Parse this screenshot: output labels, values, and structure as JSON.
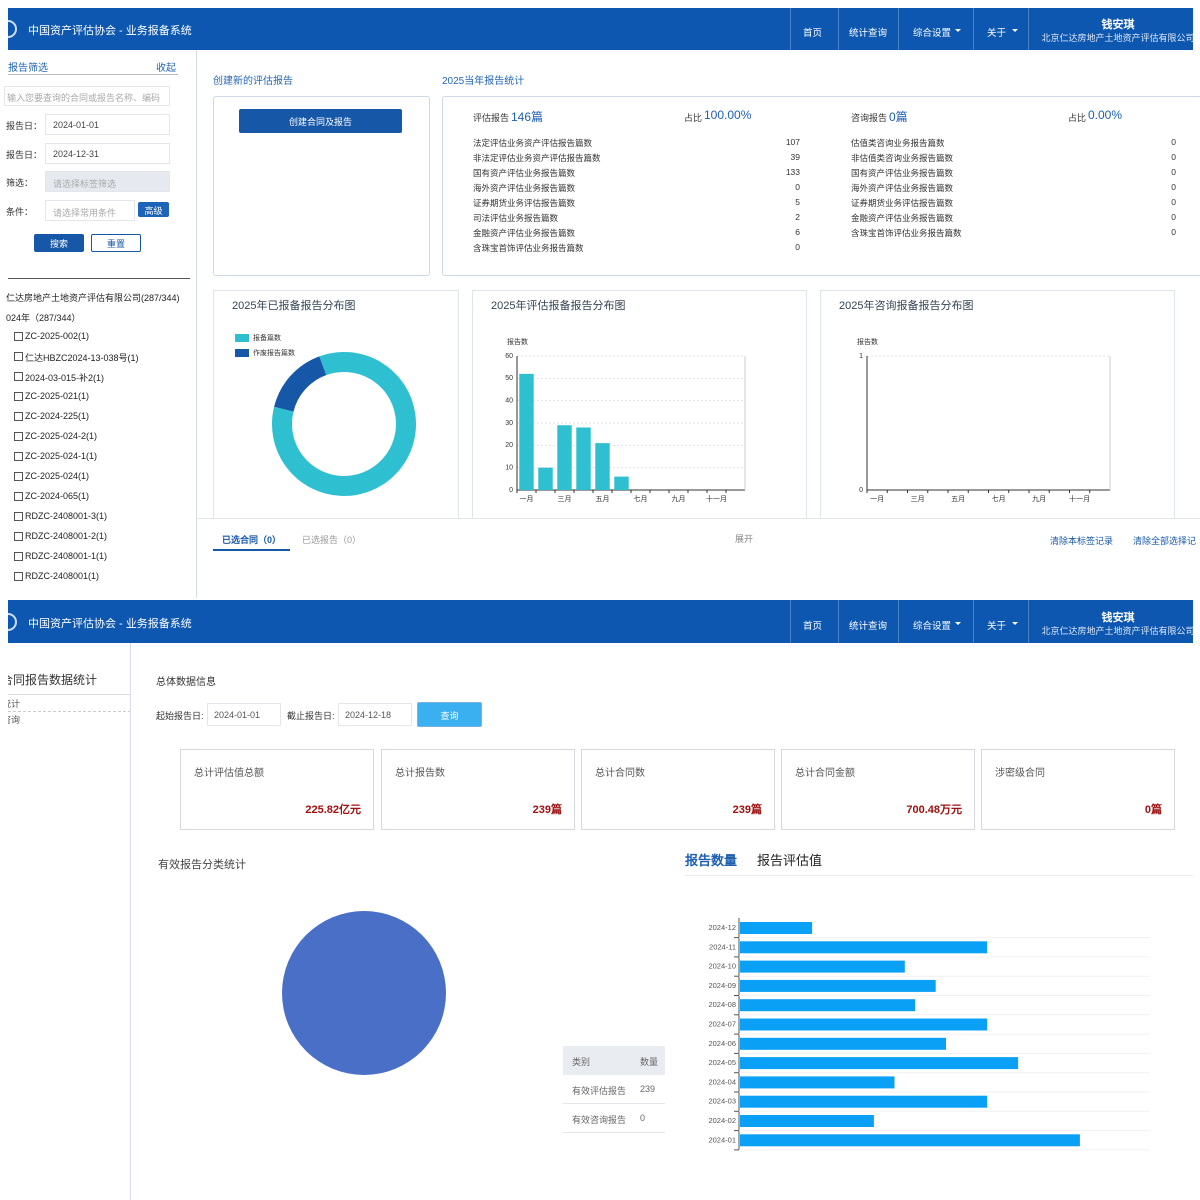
{
  "header": {
    "title": "中国资产评估协会 - 业务报备系统",
    "nav": [
      "首页",
      "统计查询",
      "综合设置",
      "关于"
    ],
    "user": "钱安琪",
    "org": "北京仁达房地产土地资产评估有限公司"
  },
  "filter": {
    "title": "报告筛选",
    "collapse": "收起",
    "search_placeholder": "输入您要查询的合同或报告名称、编码",
    "fields": [
      {
        "label": "报告日：",
        "value": "2024-01-01"
      },
      {
        "label": "报告日：",
        "value": "2024-12-31"
      },
      {
        "label": "筛选：",
        "value": "请选择标签筛选"
      },
      {
        "label": "条件：",
        "value": "请选择常用条件"
      }
    ],
    "advanced": "高级",
    "search": "搜索",
    "reset": "重置"
  },
  "tree": {
    "root": "仁达房地产土地资产评估有限公司(287/344)",
    "year": "024年（287/344）",
    "items": [
      "ZC-2025-002(1)",
      "仁达HBZC2024-13-038号(1)",
      "2024-03-015-补2(1)",
      "ZC-2025-021(1)",
      "ZC-2024-225(1)",
      "ZC-2025-024-2(1)",
      "ZC-2025-024-1(1)",
      "ZC-2025-024(1)",
      "ZC-2024-065(1)",
      "RDZC-2408001-3(1)",
      "RDZC-2408001-2(1)",
      "RDZC-2408001-1(1)",
      "RDZC-2408001(1)"
    ]
  },
  "create": {
    "title": "创建新的评估报告",
    "button": "创建合同及报告"
  },
  "stats": {
    "title": "2025当年报告统计",
    "groups": [
      {
        "label": "评估报告",
        "count": "146篇",
        "share_label": "占比",
        "share": "100.00%",
        "items": [
          {
            "name": "法定评估业务资产评估报告篇数",
            "value": 107
          },
          {
            "name": "非法定评估业务资产评估报告篇数",
            "value": 39
          },
          {
            "name": "国有资产评估业务报告篇数",
            "value": 133
          },
          {
            "name": "海外资产评估业务报告篇数",
            "value": 0
          },
          {
            "name": "证券期货业务评估报告篇数",
            "value": 5
          },
          {
            "name": "司法评估业务报告篇数",
            "value": 2
          },
          {
            "name": "金融资产评估业务报告篇数",
            "value": 6
          },
          {
            "name": "含珠宝首饰评估业务报告篇数",
            "value": 0
          }
        ]
      },
      {
        "label": "咨询报告",
        "count": "0篇",
        "share_label": "占比",
        "share": "0.00%",
        "items": [
          {
            "name": "估值类咨询业务报告篇数",
            "value": 0
          },
          {
            "name": "非估值类咨询业务报告篇数",
            "value": 0
          },
          {
            "name": "国有资产评估业务报告篇数",
            "value": 0
          },
          {
            "name": "海外资产评估业务报告篇数",
            "value": 0
          },
          {
            "name": "证券期货业务评估报告篇数",
            "value": 0
          },
          {
            "name": "金融资产评估业务报告篇数",
            "value": 0
          },
          {
            "name": "含珠宝首饰评估业务报告篇数",
            "value": 0
          }
        ]
      }
    ]
  },
  "selection": {
    "tabs": [
      "已选合同（0）",
      "已选报告（0）"
    ],
    "expand": "展开",
    "clear_tab": "清除本标签记录",
    "clear_all": "清除全部选择记"
  },
  "stats_page": {
    "sidebar_title": "合同报告数据统计",
    "menu": [
      "统计",
      "咨询"
    ],
    "section": "总体数据信息",
    "start_label": "起始报告日:",
    "start": "2024-01-01",
    "end_label": "截止报告日:",
    "end": "2024-12-18",
    "query": "查询",
    "cards": [
      {
        "label": "总计评估值总额",
        "value": "225.82亿元"
      },
      {
        "label": "总计报告数",
        "value": "239篇"
      },
      {
        "label": "总计合同数",
        "value": "239篇"
      },
      {
        "label": "总计合同金额",
        "value": "700.48万元"
      },
      {
        "label": "涉密级合同",
        "value": "0篇"
      }
    ],
    "pie_title": "有效报告分类统计",
    "table_header": [
      "类别",
      "数量"
    ],
    "tabs": [
      "报告数量",
      "报告评估值"
    ]
  },
  "chart_data": [
    {
      "type": "pie",
      "donut": true,
      "title": "2025年已报备报告分布图",
      "categories": [
        "报备篇数",
        "作废报告篇数"
      ],
      "values": [
        146,
        27
      ],
      "colors": [
        "#2ec0d0",
        "#1757a8"
      ],
      "legend": "top-left"
    },
    {
      "type": "bar",
      "title": "2025年评估报备报告分布图",
      "y_label": "报告数",
      "categories": [
        "一月",
        null,
        "三月",
        null,
        "五月",
        null,
        "七月",
        null,
        "九月",
        null,
        "十一月",
        null
      ],
      "values": [
        52,
        10,
        29,
        28,
        21,
        6,
        0,
        0,
        0,
        0,
        0,
        0
      ],
      "color": "#2ec0d0",
      "ylim": [
        0,
        60
      ],
      "yticks": [
        0,
        10,
        20,
        30,
        40,
        50,
        60
      ],
      "grid": true
    },
    {
      "type": "bar",
      "title": "2025年咨询报备报告分布图",
      "y_label": "报告数",
      "categories": [
        "一月",
        null,
        "三月",
        null,
        "五月",
        null,
        "七月",
        null,
        "九月",
        null,
        "十一月",
        null
      ],
      "values": [
        0,
        0,
        0,
        0,
        0,
        0,
        0,
        0,
        0,
        0,
        0,
        0
      ],
      "color": "#2ec0d0",
      "ylim": [
        0,
        1
      ],
      "yticks": [
        0,
        1
      ],
      "grid": true
    },
    {
      "type": "pie",
      "donut": false,
      "categories": [
        "有效评估报告",
        "有效咨询报告"
      ],
      "values": [
        239,
        0
      ],
      "colors": [
        "#4a6fc7",
        "#2ec0d0"
      ]
    },
    {
      "type": "barh",
      "categories": [
        "2024-12",
        "2024-11",
        "2024-10",
        "2024-09",
        "2024-08",
        "2024-07",
        "2024-06",
        "2024-05",
        "2024-04",
        "2024-03",
        "2024-02",
        "2024-01"
      ],
      "values": [
        7,
        24,
        16,
        19,
        17,
        24,
        20,
        27,
        15,
        24,
        13,
        33
      ],
      "color": "#0aa0f6"
    }
  ]
}
